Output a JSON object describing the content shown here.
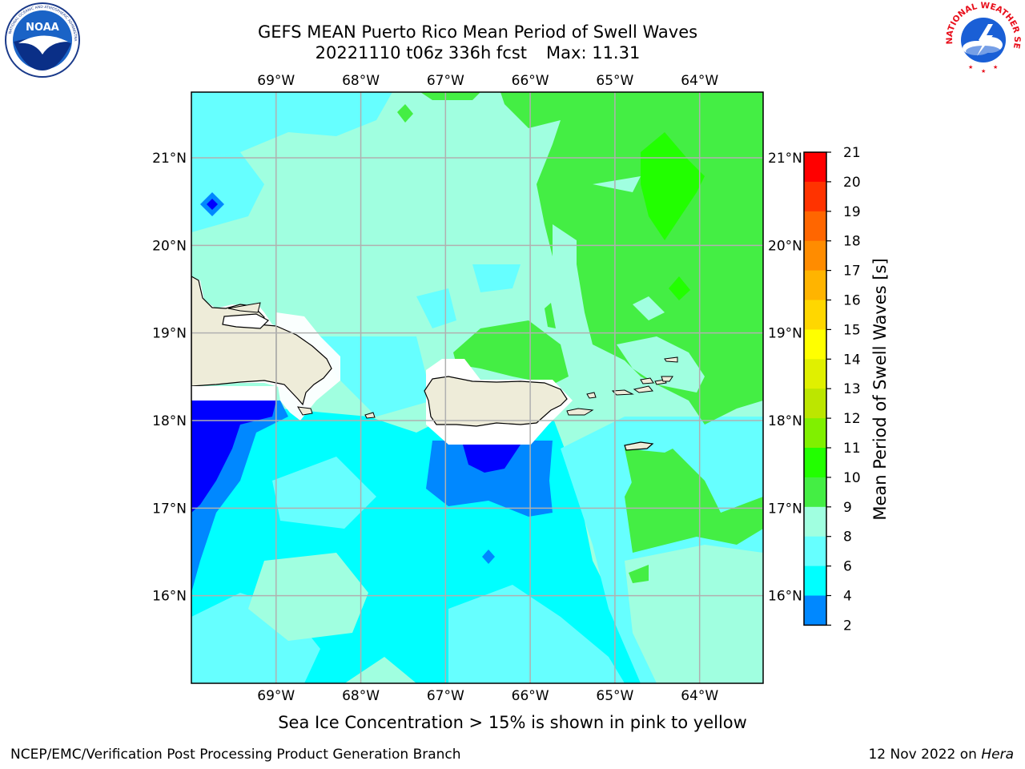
{
  "header": {
    "title_line1": "GEFS MEAN Puerto Rico Mean Period of Swell Waves",
    "title_line2_date": "20221110 t06z 336h fcst",
    "title_line2_max": "Max: 11.31"
  },
  "logos": {
    "left_name": "noaa-logo",
    "left_text": "NOAA",
    "right_name": "national-weather-service-logo",
    "right_text": "NATIONAL WEATHER SERVICE"
  },
  "map": {
    "lon_labels": [
      "69°W",
      "68°W",
      "67°W",
      "66°W",
      "65°W",
      "64°W"
    ],
    "lat_labels": [
      "21°N",
      "20°N",
      "19°N",
      "18°N",
      "17°N",
      "16°N"
    ],
    "lon_range": [
      -70.0,
      -63.25
    ],
    "lat_range": [
      15.0,
      21.75
    ],
    "gridlines": true
  },
  "colorbar": {
    "title": "Mean Period of Swell Waves [s]",
    "levels": [
      "21",
      "20",
      "19",
      "18",
      "17",
      "16",
      "15",
      "14",
      "13",
      "12",
      "11",
      "10",
      "9",
      "8",
      "6",
      "4",
      "2"
    ],
    "colors": [
      "#ff0000",
      "#ff3300",
      "#ff6600",
      "#ff8c00",
      "#ffb400",
      "#ffd700",
      "#ffff00",
      "#e0f000",
      "#bce600",
      "#80f000",
      "#22ff00",
      "#44ee44",
      "#a0ffe0",
      "#66ffff",
      "#00ffff",
      "#0088ff",
      "#0000ff"
    ]
  },
  "footnote": "Sea Ice Concentration > 15% is shown in pink to yellow",
  "credits": {
    "left": "NCEP/EMC/Verification Post Processing Product Generation Branch",
    "right_date": "12 Nov 2022 on",
    "right_machine": "Hera"
  }
}
